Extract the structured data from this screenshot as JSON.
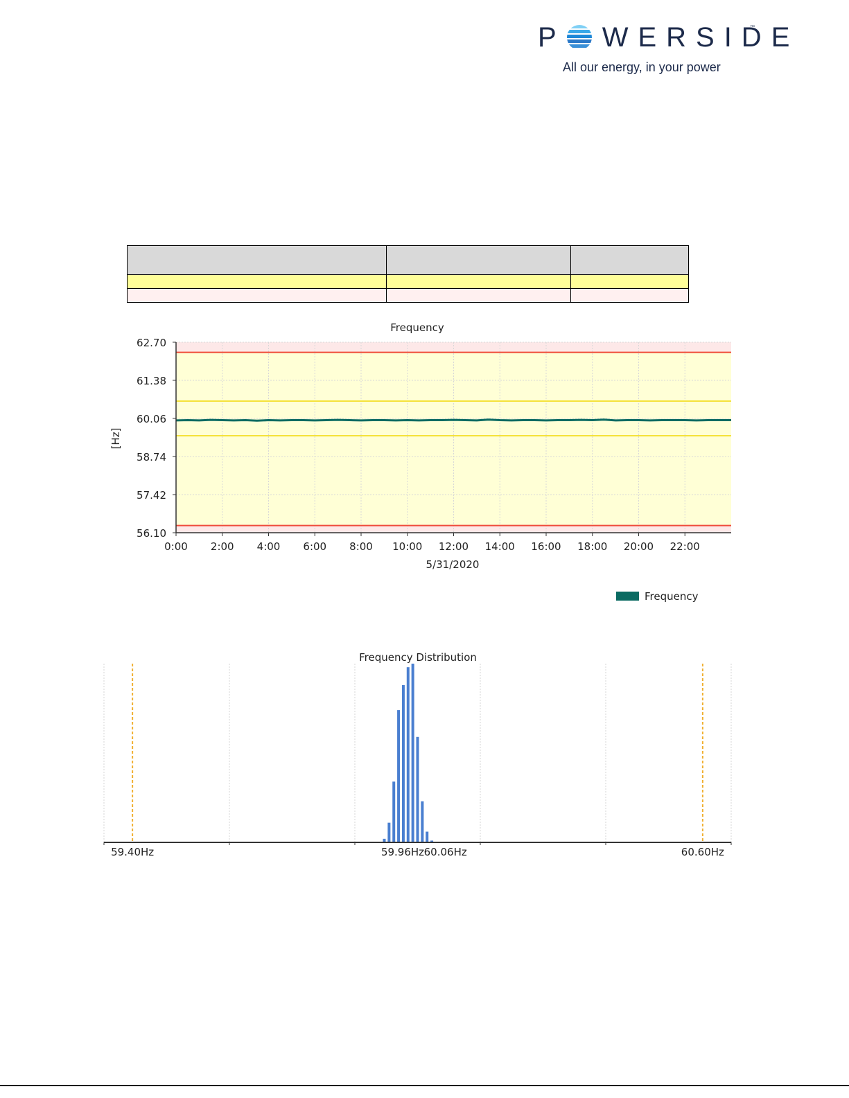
{
  "logo": {
    "word": "WERSIDE",
    "first_letter": "P",
    "trademark": "™",
    "tagline": "All our energy, in your power",
    "icon": "globe-icon"
  },
  "colors": {
    "brand": "#1c2a4a",
    "series": "#0b6b62",
    "warning_band": "#ffffd6",
    "critical_band": "#fde8e8",
    "warning_line": "#f5e23a",
    "critical_line": "#ef4b3a",
    "histogram_bar": "#4a7fd0",
    "limit_dashed": "#f0b030"
  },
  "limits_table": {
    "columns": 3,
    "rows": [
      {
        "type": "header",
        "cells": [
          "",
          "",
          ""
        ]
      },
      {
        "type": "warning",
        "cells": [
          "",
          "",
          ""
        ]
      },
      {
        "type": "critical",
        "cells": [
          "",
          "",
          ""
        ]
      }
    ]
  },
  "chart_data": [
    {
      "type": "line",
      "title": "Frequency",
      "ylabel": "[Hz]",
      "xlabel": "5/31/2020",
      "ylim": [
        56.1,
        62.7
      ],
      "yticks": [
        "62.70",
        "61.38",
        "60.06",
        "58.74",
        "57.42",
        "56.10"
      ],
      "xlim": [
        0,
        24
      ],
      "xticks": [
        "0:00",
        "2:00",
        "4:00",
        "6:00",
        "8:00",
        "10:00",
        "12:00",
        "14:00",
        "16:00",
        "18:00",
        "20:00",
        "22:00"
      ],
      "grid": true,
      "legend": {
        "position": "bottom-right",
        "entries": [
          "Frequency"
        ]
      },
      "bands": {
        "critical_high": 62.35,
        "warning_high": 60.66,
        "warning_low": 59.46,
        "critical_low": 56.35
      },
      "series": [
        {
          "name": "Frequency",
          "x": [
            0,
            0.5,
            1,
            1.5,
            2,
            2.5,
            3,
            3.5,
            4,
            4.5,
            5,
            5.5,
            6,
            6.5,
            7,
            7.5,
            8,
            8.5,
            9,
            9.5,
            10,
            10.5,
            11,
            11.5,
            12,
            12.5,
            13,
            13.5,
            14,
            14.5,
            15,
            15.5,
            16,
            16.5,
            17,
            17.5,
            18,
            18.5,
            19,
            19.5,
            20,
            20.5,
            21,
            21.5,
            22,
            22.5,
            23,
            23.5,
            24
          ],
          "values": [
            59.99,
            60.0,
            59.99,
            60.01,
            60.0,
            59.99,
            60.0,
            59.98,
            60.0,
            59.99,
            60.0,
            60.0,
            59.99,
            60.0,
            60.01,
            60.0,
            59.99,
            60.0,
            60.0,
            59.99,
            60.0,
            59.99,
            60.0,
            60.0,
            60.01,
            60.0,
            59.99,
            60.02,
            60.0,
            59.99,
            60.0,
            60.0,
            59.99,
            60.0,
            60.0,
            60.01,
            60.0,
            60.02,
            59.99,
            60.0,
            60.0,
            59.99,
            60.0,
            60.0,
            60.0,
            59.99,
            60.0,
            60.0,
            60.0
          ]
        }
      ]
    },
    {
      "type": "bar",
      "title": "Frequency Distribution",
      "xlim": [
        59.34,
        60.66
      ],
      "xtick_labels": [
        "59.40Hz",
        "59.96Hz",
        "60.06Hz",
        "60.60Hz"
      ],
      "limit_lines": [
        59.4,
        60.6
      ],
      "grid": true,
      "bin_centers": [
        59.93,
        59.94,
        59.95,
        59.96,
        59.97,
        59.98,
        59.99,
        60.0,
        60.01,
        60.02,
        60.03,
        60.04,
        60.05
      ],
      "values": [
        2,
        11,
        34,
        74,
        88,
        98,
        100,
        59,
        23,
        6,
        1,
        0,
        0
      ]
    }
  ]
}
